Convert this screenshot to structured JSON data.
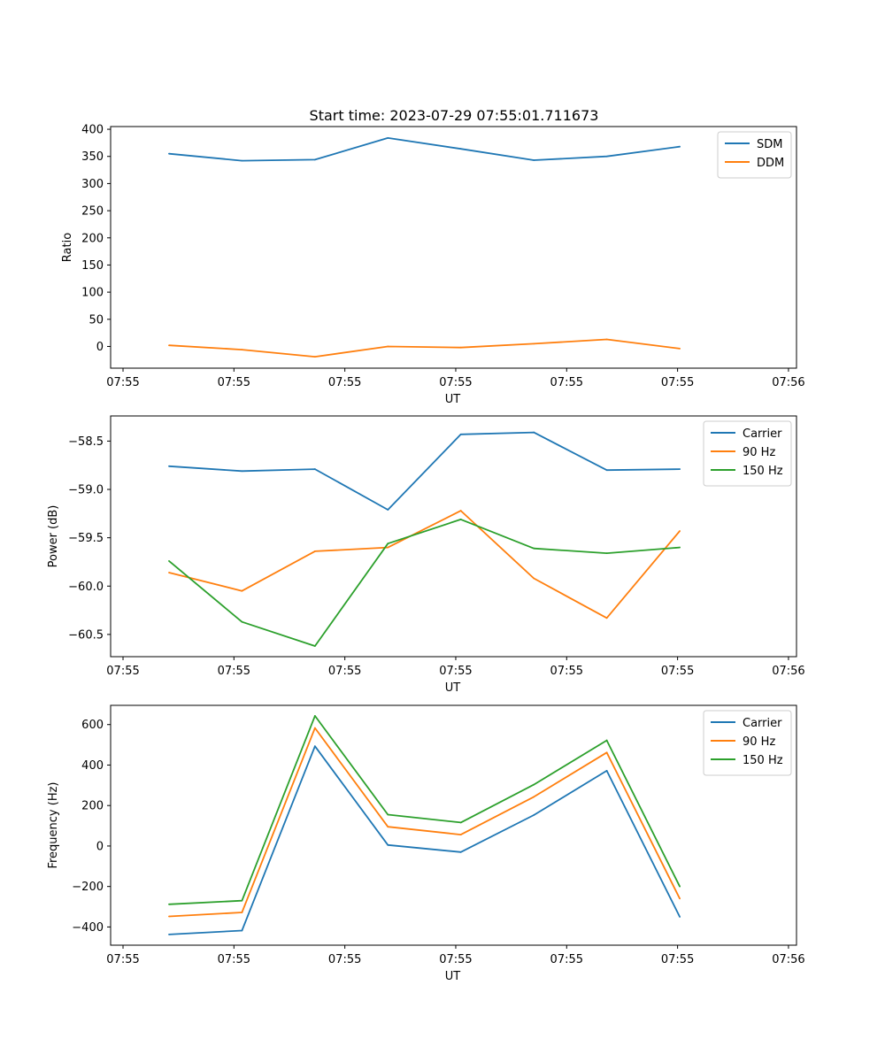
{
  "figure": {
    "title": "Start time: 2023-07-29 07:55:01.711673"
  },
  "chart_data": [
    {
      "type": "line",
      "title": "Start time: 2023-07-29 07:55:01.711673",
      "xlabel": "UT",
      "ylabel": "Ratio",
      "x": [
        1,
        2,
        3,
        4,
        5,
        6,
        7,
        8
      ],
      "xlim": [
        0.2,
        9.6
      ],
      "xticks": [
        0.37,
        1.89,
        3.41,
        4.93,
        6.45,
        7.97,
        9.49
      ],
      "xtick_labels": [
        "07:55",
        "07:55",
        "07:55",
        "07:55",
        "07:55",
        "07:55",
        "07:56"
      ],
      "ylim": [
        -40,
        405
      ],
      "yticks": [
        0,
        50,
        100,
        150,
        200,
        250,
        300,
        350,
        400
      ],
      "ytick_labels": [
        "0",
        "50",
        "100",
        "150",
        "200",
        "250",
        "300",
        "350",
        "400"
      ],
      "legend_position": "top-right",
      "series": [
        {
          "name": "SDM",
          "color": "#1f77b4",
          "values": [
            355,
            342,
            344,
            384,
            364,
            343,
            350,
            368
          ]
        },
        {
          "name": "DDM",
          "color": "#ff7f0e",
          "values": [
            2,
            -6,
            -19,
            0,
            -2,
            5,
            13,
            -4
          ]
        }
      ]
    },
    {
      "type": "line",
      "title": "",
      "xlabel": "UT",
      "ylabel": "Power (dB)",
      "x": [
        1,
        2,
        3,
        4,
        5,
        6,
        7,
        8
      ],
      "xlim": [
        0.2,
        9.6
      ],
      "xticks": [
        0.37,
        1.89,
        3.41,
        4.93,
        6.45,
        7.97,
        9.49
      ],
      "xtick_labels": [
        "07:55",
        "07:55",
        "07:55",
        "07:55",
        "07:55",
        "07:55",
        "07:56"
      ],
      "ylim": [
        -60.73,
        -58.24
      ],
      "yticks": [
        -60.5,
        -60.0,
        -59.5,
        -59.0,
        -58.5
      ],
      "ytick_labels": [
        "−60.5",
        "−60.0",
        "−59.5",
        "−59.0",
        "−58.5"
      ],
      "legend_position": "top-right",
      "series": [
        {
          "name": "Carrier",
          "color": "#1f77b4",
          "values": [
            -58.76,
            -58.81,
            -58.79,
            -59.21,
            -58.43,
            -58.41,
            -58.8,
            -58.79
          ]
        },
        {
          "name": "90 Hz",
          "color": "#ff7f0e",
          "values": [
            -59.86,
            -60.05,
            -59.64,
            -59.6,
            -59.22,
            -59.92,
            -60.33,
            -59.43
          ]
        },
        {
          "name": "150 Hz",
          "color": "#2ca02c",
          "values": [
            -59.74,
            -60.37,
            -60.62,
            -59.56,
            -59.31,
            -59.61,
            -59.66,
            -59.6
          ]
        }
      ]
    },
    {
      "type": "line",
      "title": "",
      "xlabel": "UT",
      "ylabel": "Frequency (Hz)",
      "x": [
        1,
        2,
        3,
        4,
        5,
        6,
        7,
        8
      ],
      "xlim": [
        0.2,
        9.6
      ],
      "xticks": [
        0.37,
        1.89,
        3.41,
        4.93,
        6.45,
        7.97,
        9.49
      ],
      "xtick_labels": [
        "07:55",
        "07:55",
        "07:55",
        "07:55",
        "07:55",
        "07:55",
        "07:56"
      ],
      "ylim": [
        -490,
        695
      ],
      "yticks": [
        -400,
        -200,
        0,
        200,
        400,
        600
      ],
      "ytick_labels": [
        "−400",
        "−200",
        "0",
        "200",
        "400",
        "600"
      ],
      "legend_position": "top-right",
      "series": [
        {
          "name": "Carrier",
          "color": "#1f77b4",
          "values": [
            -437,
            -418,
            493,
            5,
            -30,
            153,
            372,
            -350
          ]
        },
        {
          "name": "90 Hz",
          "color": "#ff7f0e",
          "values": [
            -348,
            -328,
            583,
            95,
            56,
            243,
            462,
            -260
          ]
        },
        {
          "name": "150 Hz",
          "color": "#2ca02c",
          "values": [
            -288,
            -270,
            643,
            155,
            116,
            303,
            522,
            -200
          ]
        }
      ]
    }
  ]
}
